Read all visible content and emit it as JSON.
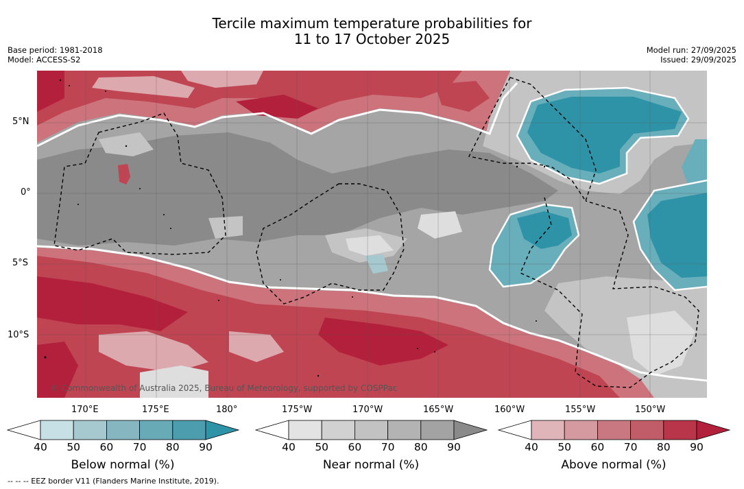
{
  "title": {
    "line1": "Tercile maximum temperature probabilities for",
    "line2": "11 to 17 October 2025"
  },
  "meta": {
    "base_period": "Base period: 1981-2018",
    "model": "Model: ACCESS-S2",
    "model_run": "Model run: 27/09/2025",
    "issued": "Issued: 29/09/2025"
  },
  "map": {
    "lat_labels": [
      "5°N",
      "0°",
      "5°S",
      "10°S"
    ],
    "lon_labels": [
      "170°E",
      "175°E",
      "180°",
      "175°W",
      "170°W",
      "165°W",
      "160°W",
      "155°W",
      "150°W"
    ],
    "copyright": "© Commonwealth of Australia 2025, Bureau of Meteorology, supported by COSPPac",
    "colors": {
      "near_dark": "#8a8a8a",
      "near_mid": "#a5a5a5",
      "near_light": "#c4c4c4",
      "near_lightest": "#dedede",
      "above_low": "#dca9ae",
      "above_mid": "#cc737c",
      "above_high": "#bf4553",
      "above_top": "#b3203b",
      "below_mid": "#69aebb",
      "below_high": "#2e93a7"
    }
  },
  "colorbars": [
    {
      "label": "Below normal (%)",
      "ticks": [
        "40",
        "50",
        "60",
        "70",
        "80",
        "90"
      ],
      "colors": [
        "#c7e0e6",
        "#a6c9d0",
        "#86b6c0",
        "#69aab7",
        "#4c9dae",
        "#2e93a7"
      ]
    },
    {
      "label": "Near normal (%)",
      "ticks": [
        "40",
        "50",
        "60",
        "70",
        "80",
        "90"
      ],
      "colors": [
        "#e3e3e3",
        "#d1d1d1",
        "#c2c2c2",
        "#b3b3b3",
        "#a3a3a3",
        "#8a8a8a"
      ]
    },
    {
      "label": "Above normal (%)",
      "ticks": [
        "40",
        "50",
        "60",
        "70",
        "80",
        "90"
      ],
      "colors": [
        "#e0b5ba",
        "#d49aa0",
        "#c97882",
        "#c05d69",
        "#b9354a",
        "#b3203b"
      ]
    }
  ],
  "footnote": "-- -- -- EEZ border V11 (Flanders Marine Institute, 2019)."
}
